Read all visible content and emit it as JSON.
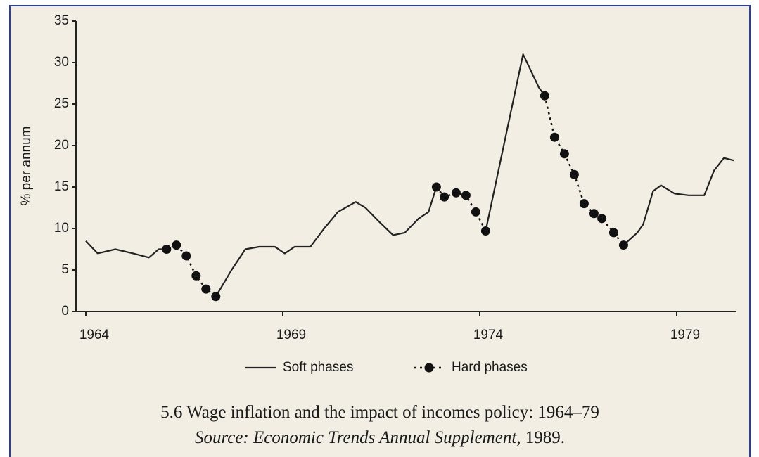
{
  "chart_data": {
    "type": "line",
    "ylabel": "% per annum",
    "xlim": [
      1963.75,
      1980.5
    ],
    "xticks": [
      1964,
      1969,
      1974,
      1979
    ],
    "ylim": [
      0,
      35
    ],
    "yticks": [
      0,
      5,
      10,
      15,
      20,
      25,
      30,
      35
    ],
    "series": [
      {
        "name": "Soft phases",
        "color": "#222222",
        "style": "solid",
        "x": [
          1964,
          1964.3,
          1964.75,
          1965.2,
          1965.6,
          1965.85,
          1966.05,
          null,
          1967.3,
          1967.7,
          1968.05,
          1968.4,
          1968.8,
          1969.05,
          1969.3,
          1969.7,
          1970.05,
          1970.4,
          1970.85,
          1971.1,
          1971.45,
          1971.8,
          1972.1,
          1972.45,
          1972.7,
          1972.9,
          null,
          1974.15,
          1975.1,
          1975.5,
          1975.65,
          null,
          1977.65,
          1978,
          1978.15,
          1978.4,
          1978.6,
          1978.95,
          1979.3,
          1979.7,
          1979.95,
          1980.2,
          1980.45
        ],
        "values": [
          8.5,
          7.0,
          7.5,
          7.0,
          6.5,
          7.5,
          7.5,
          null,
          1.8,
          5.0,
          7.5,
          7.8,
          7.8,
          7.0,
          7.8,
          7.8,
          10.0,
          12.0,
          13.2,
          12.5,
          10.8,
          9.2,
          9.5,
          11.2,
          12.0,
          15.0,
          null,
          9.7,
          31.0,
          27.0,
          26.0,
          null,
          8.0,
          9.5,
          10.5,
          14.5,
          15.2,
          14.2,
          14.0,
          14.0,
          17.0,
          18.5,
          18.2
        ]
      },
      {
        "name": "Hard phases",
        "color": "#111111",
        "style": "dotted",
        "x": [
          1966.05,
          1966.3,
          1966.55,
          1966.8,
          1967.05,
          1967.3,
          null,
          1972.9,
          1973.1,
          1973.4,
          1973.65,
          1973.9,
          1974.15,
          null,
          1975.65,
          1975.9,
          1976.15,
          1976.4,
          1976.65,
          1976.9,
          1977.1,
          1977.4,
          1977.65
        ],
        "values": [
          7.5,
          8.0,
          6.7,
          4.3,
          2.7,
          1.8,
          null,
          15.0,
          13.8,
          14.3,
          14.0,
          12.0,
          9.7,
          null,
          26.0,
          21.0,
          19.0,
          16.5,
          13.0,
          11.8,
          11.2,
          9.5,
          8.0
        ]
      }
    ],
    "caption": "5.6 Wage inflation and the impact of incomes policy: 1964–79",
    "source": [
      "Source:",
      "Economic Trends Annual Supplement",
      ", 1989."
    ]
  }
}
